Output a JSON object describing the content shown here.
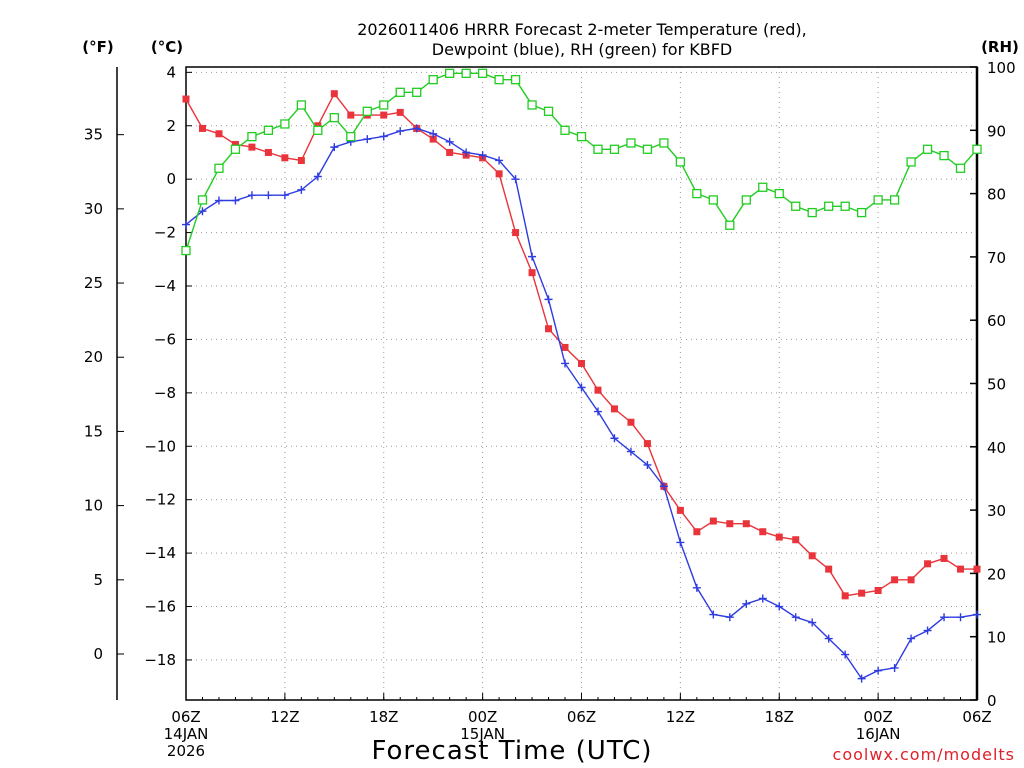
{
  "chart_data": {
    "type": "line",
    "title_line1": "2026011406 HRRR Forecast 2-meter Temperature (red),",
    "title_line2": "Dewpoint (blue), RH (green) for KBFD",
    "xlabel": "Forecast Time (UTC)",
    "credit": "coolwx.com/modelts",
    "units": {
      "fahrenheit": "(°F)",
      "celsius": "(°C)",
      "rh": "(RH)"
    },
    "hours": [
      0,
      1,
      2,
      3,
      4,
      5,
      6,
      7,
      8,
      9,
      10,
      11,
      12,
      13,
      14,
      15,
      16,
      17,
      18,
      19,
      20,
      21,
      22,
      23,
      24,
      25,
      26,
      27,
      28,
      29,
      30,
      31,
      32,
      33,
      34,
      35,
      36,
      37,
      38,
      39,
      40,
      41,
      42,
      43,
      44,
      45,
      46,
      47,
      48
    ],
    "x_ticks": [
      {
        "hour": 0,
        "label": "06Z",
        "sub1": "14JAN",
        "sub2": "2026"
      },
      {
        "hour": 6,
        "label": "12Z",
        "sub1": "",
        "sub2": ""
      },
      {
        "hour": 12,
        "label": "18Z",
        "sub1": "",
        "sub2": ""
      },
      {
        "hour": 18,
        "label": "00Z",
        "sub1": "15JAN",
        "sub2": ""
      },
      {
        "hour": 24,
        "label": "06Z",
        "sub1": "",
        "sub2": ""
      },
      {
        "hour": 30,
        "label": "12Z",
        "sub1": "",
        "sub2": ""
      },
      {
        "hour": 36,
        "label": "18Z",
        "sub1": "",
        "sub2": ""
      },
      {
        "hour": 42,
        "label": "00Z",
        "sub1": "16JAN",
        "sub2": ""
      },
      {
        "hour": 48,
        "label": "06Z",
        "sub1": "",
        "sub2": ""
      }
    ],
    "celsius_axis": {
      "min": -19.5,
      "max": 4.2,
      "ticks": [
        4,
        2,
        0,
        -2,
        -4,
        -6,
        -8,
        -10,
        -12,
        -14,
        -16,
        -18
      ]
    },
    "fahrenheit_axis": {
      "ticks": [
        35,
        30,
        25,
        20,
        15,
        10,
        5,
        0
      ]
    },
    "rh_axis": {
      "min": 0,
      "max": 100,
      "ticks": [
        100,
        90,
        80,
        70,
        60,
        50,
        40,
        30,
        20,
        10,
        0
      ]
    },
    "series": [
      {
        "name": "Temperature",
        "unit": "C",
        "color": "#e8343a",
        "marker": "filled-square",
        "values": [
          3.0,
          1.9,
          1.7,
          1.3,
          1.2,
          1.0,
          0.8,
          0.7,
          2.0,
          3.2,
          2.4,
          2.4,
          2.4,
          2.5,
          1.9,
          1.5,
          1.0,
          0.9,
          0.8,
          0.2,
          -2.0,
          -3.5,
          -5.6,
          -6.3,
          -6.9,
          -7.9,
          -8.6,
          -9.1,
          -9.9,
          -11.5,
          -12.4,
          -13.2,
          -12.8,
          -12.9,
          -12.9,
          -13.2,
          -13.4,
          -13.5,
          -14.1,
          -14.6,
          -15.6,
          -15.5,
          -15.4,
          -15.0,
          -15.0,
          -14.4,
          -14.2,
          -14.6,
          -14.6
        ]
      },
      {
        "name": "Dewpoint",
        "unit": "C",
        "color": "#2f3ce0",
        "marker": "plus",
        "values": [
          -1.7,
          -1.2,
          -0.8,
          -0.8,
          -0.6,
          -0.6,
          -0.6,
          -0.4,
          0.1,
          1.2,
          1.4,
          1.5,
          1.6,
          1.8,
          1.9,
          1.7,
          1.4,
          1.0,
          0.9,
          0.7,
          0.0,
          -2.9,
          -4.5,
          -6.9,
          -7.8,
          -8.7,
          -9.7,
          -10.2,
          -10.7,
          -11.5,
          -13.6,
          -15.3,
          -16.3,
          -16.4,
          -15.9,
          -15.7,
          -16.0,
          -16.4,
          -16.6,
          -17.2,
          -17.8,
          -18.7,
          -18.4,
          -18.3,
          -17.2,
          -16.9,
          -16.4,
          -16.4,
          -16.3
        ]
      },
      {
        "name": "RH",
        "unit": "%",
        "color": "#22cc22",
        "marker": "open-square",
        "values": [
          71,
          79,
          84,
          87,
          89,
          90,
          91,
          94,
          90,
          92,
          89,
          93,
          94,
          96,
          96,
          98,
          99,
          99,
          99,
          98,
          98,
          94,
          93,
          90,
          89,
          87,
          87,
          88,
          87,
          88,
          85,
          80,
          79,
          75,
          79,
          81,
          80,
          78,
          77,
          78,
          78,
          77,
          79,
          79,
          85,
          87,
          86,
          84,
          87
        ]
      }
    ]
  }
}
